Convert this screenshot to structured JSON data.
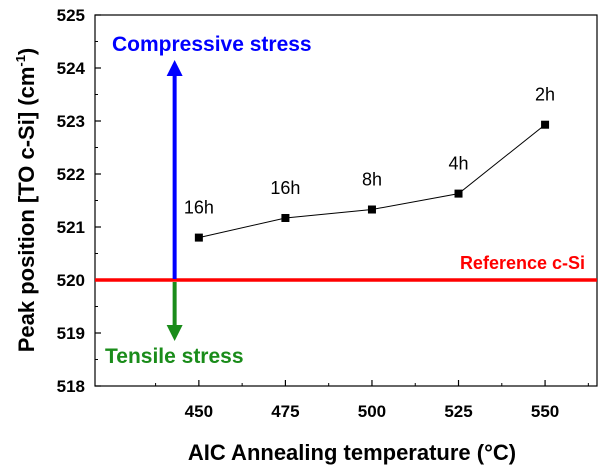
{
  "chart_data": {
    "type": "line",
    "xlabel": "AIC Annealing temperature (°C)",
    "ylabel_main": "Peak position [TO c-Si] (cm",
    "ylabel_sup": "-1",
    "ylabel_close": ")",
    "xlim": [
      420,
      565
    ],
    "ylim": [
      518,
      525
    ],
    "xticks": [
      450,
      475,
      500,
      525,
      550
    ],
    "yticks": [
      518,
      519,
      520,
      521,
      522,
      523,
      524,
      525
    ],
    "grid": false,
    "series": [
      {
        "x": [
          450,
          475,
          500,
          525,
          550
        ],
        "y": [
          520.8,
          521.17,
          521.33,
          521.63,
          522.93
        ],
        "labels": [
          "16h",
          "16h",
          "8h",
          "4h",
          "2h"
        ],
        "color": "#000000"
      }
    ],
    "reference": {
      "y": 520,
      "label": "Reference c-Si",
      "color": "#ff0000"
    },
    "annotations": {
      "x": 443,
      "compressive": {
        "label": "Compressive stress",
        "to_y": 524.15,
        "color": "#0000ff"
      },
      "tensile": {
        "label": "Tensile stress",
        "to_y": 518.85,
        "color": "#1a8c1a"
      }
    }
  }
}
